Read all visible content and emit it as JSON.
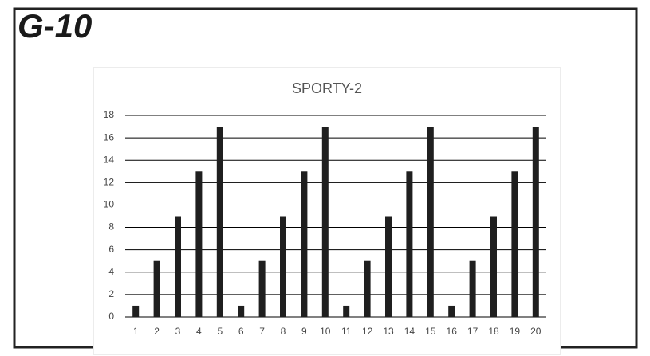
{
  "header": {
    "title": "G-10"
  },
  "chart_data": {
    "type": "bar",
    "title": "SPORTY-2",
    "categories": [
      "1",
      "2",
      "3",
      "4",
      "5",
      "6",
      "7",
      "8",
      "9",
      "10",
      "11",
      "12",
      "13",
      "14",
      "15",
      "16",
      "17",
      "18",
      "19",
      "20"
    ],
    "values": [
      1,
      5,
      9,
      13,
      17,
      1,
      5,
      9,
      13,
      17,
      1,
      5,
      9,
      13,
      17,
      1,
      5,
      9,
      13,
      17
    ],
    "color": "#1f1f1f",
    "ylim": [
      0,
      18
    ],
    "yticks": [
      0,
      2,
      4,
      6,
      8,
      10,
      12,
      14,
      16,
      18
    ],
    "grid": true
  }
}
